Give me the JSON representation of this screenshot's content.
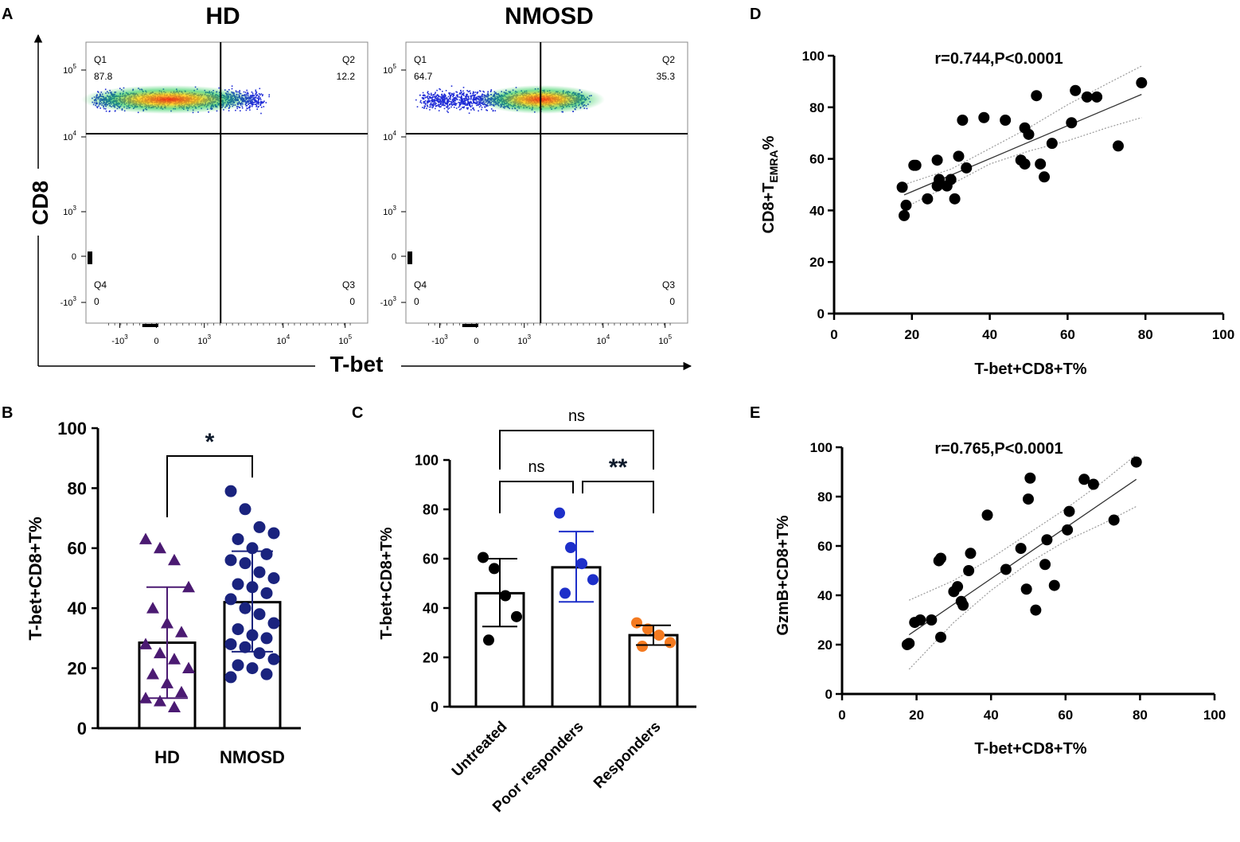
{
  "panel_letters": [
    "A",
    "B",
    "C",
    "D",
    "E"
  ],
  "colors": {
    "axis": "#000000",
    "hd_purple": "#4b1a72",
    "nmosd_navy": "#1a237e",
    "blue": "#1d2fc9",
    "orange": "#f47a20",
    "star": "#0d1a2b",
    "grey_ci": "#9a9a9a",
    "fit_line": "#333333"
  },
  "chart_data": [
    {
      "id": "A",
      "type": "scatter",
      "subtype": "flow-cytometry-dot-plot",
      "shared_xlabel": "T-bet",
      "shared_ylabel": "CD8",
      "ytick_labels": [
        "10^5",
        "10^4",
        "10^3",
        "0",
        "-10^3"
      ],
      "xtick_labels": [
        "-10^3",
        "0",
        "10^3",
        "10^4",
        "10^5"
      ],
      "plots": [
        {
          "title": "HD",
          "quadrants": {
            "Q1": "87.8",
            "Q2": "12.2",
            "Q3": "0",
            "Q4": "0"
          }
        },
        {
          "title": "NMOSD",
          "quadrants": {
            "Q1": "64.7",
            "Q2": "35.3",
            "Q3": "0",
            "Q4": "0"
          }
        }
      ]
    },
    {
      "id": "B",
      "type": "bar",
      "ylabel": "T-bet+CD8+T%",
      "ylim": [
        0,
        100
      ],
      "yticks": [
        0,
        20,
        40,
        60,
        80,
        100
      ],
      "categories": [
        "HD",
        "NMOSD"
      ],
      "means": [
        28.5,
        42
      ],
      "sd_low": [
        10,
        25.5
      ],
      "sd_high": [
        47,
        59
      ],
      "significance": [
        {
          "from": 0,
          "to": 1,
          "label": "*"
        }
      ],
      "points": [
        [
          63,
          60,
          56,
          47,
          40,
          35,
          32,
          28,
          25,
          23,
          20,
          18,
          15,
          12,
          10,
          9,
          7
        ],
        [
          79,
          73,
          67,
          65,
          63,
          60,
          58,
          56,
          55,
          52,
          50,
          48,
          47,
          45,
          43,
          40,
          38,
          35,
          33,
          31,
          30,
          28,
          27,
          25,
          23,
          21,
          20,
          18,
          17
        ]
      ]
    },
    {
      "id": "C",
      "type": "bar",
      "ylabel": "T-bet+CD8+T%",
      "ylim": [
        0,
        100
      ],
      "yticks": [
        0,
        20,
        40,
        60,
        80,
        100
      ],
      "categories": [
        "Untreated",
        "Poor responders",
        "Responders"
      ],
      "means": [
        46,
        56.5,
        29
      ],
      "sd_low": [
        32.5,
        42.5,
        25
      ],
      "sd_high": [
        60,
        71,
        33
      ],
      "significance": [
        {
          "from": 0,
          "to": 1,
          "label": "ns"
        },
        {
          "from": 1,
          "to": 2,
          "label": "**"
        },
        {
          "from": 0,
          "to": 2,
          "label": "ns"
        }
      ],
      "points": [
        [
          60.5,
          56,
          45,
          36.5,
          27
        ],
        [
          78.5,
          64.5,
          58,
          51.5,
          46
        ],
        [
          34,
          31.5,
          29,
          26,
          24.5
        ]
      ]
    },
    {
      "id": "D",
      "type": "scatter",
      "title": "r=0.744,P<0.0001",
      "xlabel": "T-bet+CD8+T%",
      "ylabel_main": "CD8+T",
      "ylabel_sub": "EMRA",
      "ylabel_tail": "%",
      "xlim": [
        0,
        100
      ],
      "ylim": [
        0,
        100
      ],
      "xticks": [
        0,
        20,
        40,
        60,
        80,
        100
      ],
      "yticks": [
        0,
        20,
        40,
        60,
        80,
        100
      ],
      "x": [
        79,
        62,
        65,
        67.5,
        52,
        38.5,
        44,
        33,
        49,
        50,
        61,
        56,
        48,
        49,
        53,
        54,
        73,
        20.5,
        26.5,
        21,
        27,
        32,
        34,
        30,
        26.5,
        29,
        17.5,
        18.5,
        24,
        31,
        18
      ],
      "y": [
        89.5,
        86.5,
        84,
        84,
        84.5,
        76,
        75,
        75,
        72,
        69.5,
        74,
        66,
        59.5,
        58,
        58,
        53,
        65,
        57.5,
        59.5,
        57.5,
        52,
        61,
        56.5,
        52,
        49.5,
        49.5,
        49,
        42,
        44.5,
        44.5,
        38
      ],
      "fit": {
        "x0": 18,
        "y0": 46,
        "x1": 79,
        "y1": 85
      },
      "ci_upper": [
        [
          18,
          50
        ],
        [
          30,
          56
        ],
        [
          40,
          64
        ],
        [
          50,
          72
        ],
        [
          60,
          81
        ],
        [
          70,
          89
        ],
        [
          79,
          96
        ]
      ],
      "ci_lower": [
        [
          18,
          41
        ],
        [
          30,
          50
        ],
        [
          40,
          58
        ],
        [
          50,
          63
        ],
        [
          60,
          67
        ],
        [
          70,
          72
        ],
        [
          79,
          76
        ]
      ]
    },
    {
      "id": "E",
      "type": "scatter",
      "title": "r=0.765,P<0.0001",
      "xlabel": "T-bet+CD8+T%",
      "ylabel": "GzmB+CD8+T%",
      "xlim": [
        0,
        100
      ],
      "ylim": [
        0,
        100
      ],
      "xticks": [
        0,
        20,
        40,
        60,
        80,
        100
      ],
      "yticks": [
        0,
        20,
        40,
        60,
        80,
        100
      ],
      "x": [
        79,
        67.5,
        65,
        50.5,
        50,
        61,
        73,
        60.5,
        39,
        48,
        55,
        54.5,
        57,
        44,
        34.5,
        26.5,
        26,
        34,
        30,
        31,
        32,
        32.5,
        49.5,
        52,
        24,
        21,
        19.5,
        18,
        17.5,
        26.5
      ],
      "y": [
        94,
        85,
        87,
        87.5,
        79,
        74,
        70.5,
        66.5,
        72.5,
        59,
        62.5,
        52.5,
        44,
        50.5,
        57,
        55,
        54,
        50,
        41.5,
        43.5,
        37.5,
        36,
        42.5,
        34,
        30,
        30,
        29,
        20.5,
        20,
        23
      ],
      "fit": {
        "x0": 18,
        "y0": 24,
        "x1": 79,
        "y1": 87
      },
      "ci_upper": [
        [
          18,
          38
        ],
        [
          30,
          46
        ],
        [
          40,
          55
        ],
        [
          50,
          65
        ],
        [
          60,
          75
        ],
        [
          70,
          86
        ],
        [
          79,
          97
        ]
      ],
      "ci_lower": [
        [
          18,
          10
        ],
        [
          30,
          29
        ],
        [
          40,
          42
        ],
        [
          50,
          53
        ],
        [
          60,
          62
        ],
        [
          70,
          69
        ],
        [
          79,
          76
        ]
      ]
    }
  ]
}
